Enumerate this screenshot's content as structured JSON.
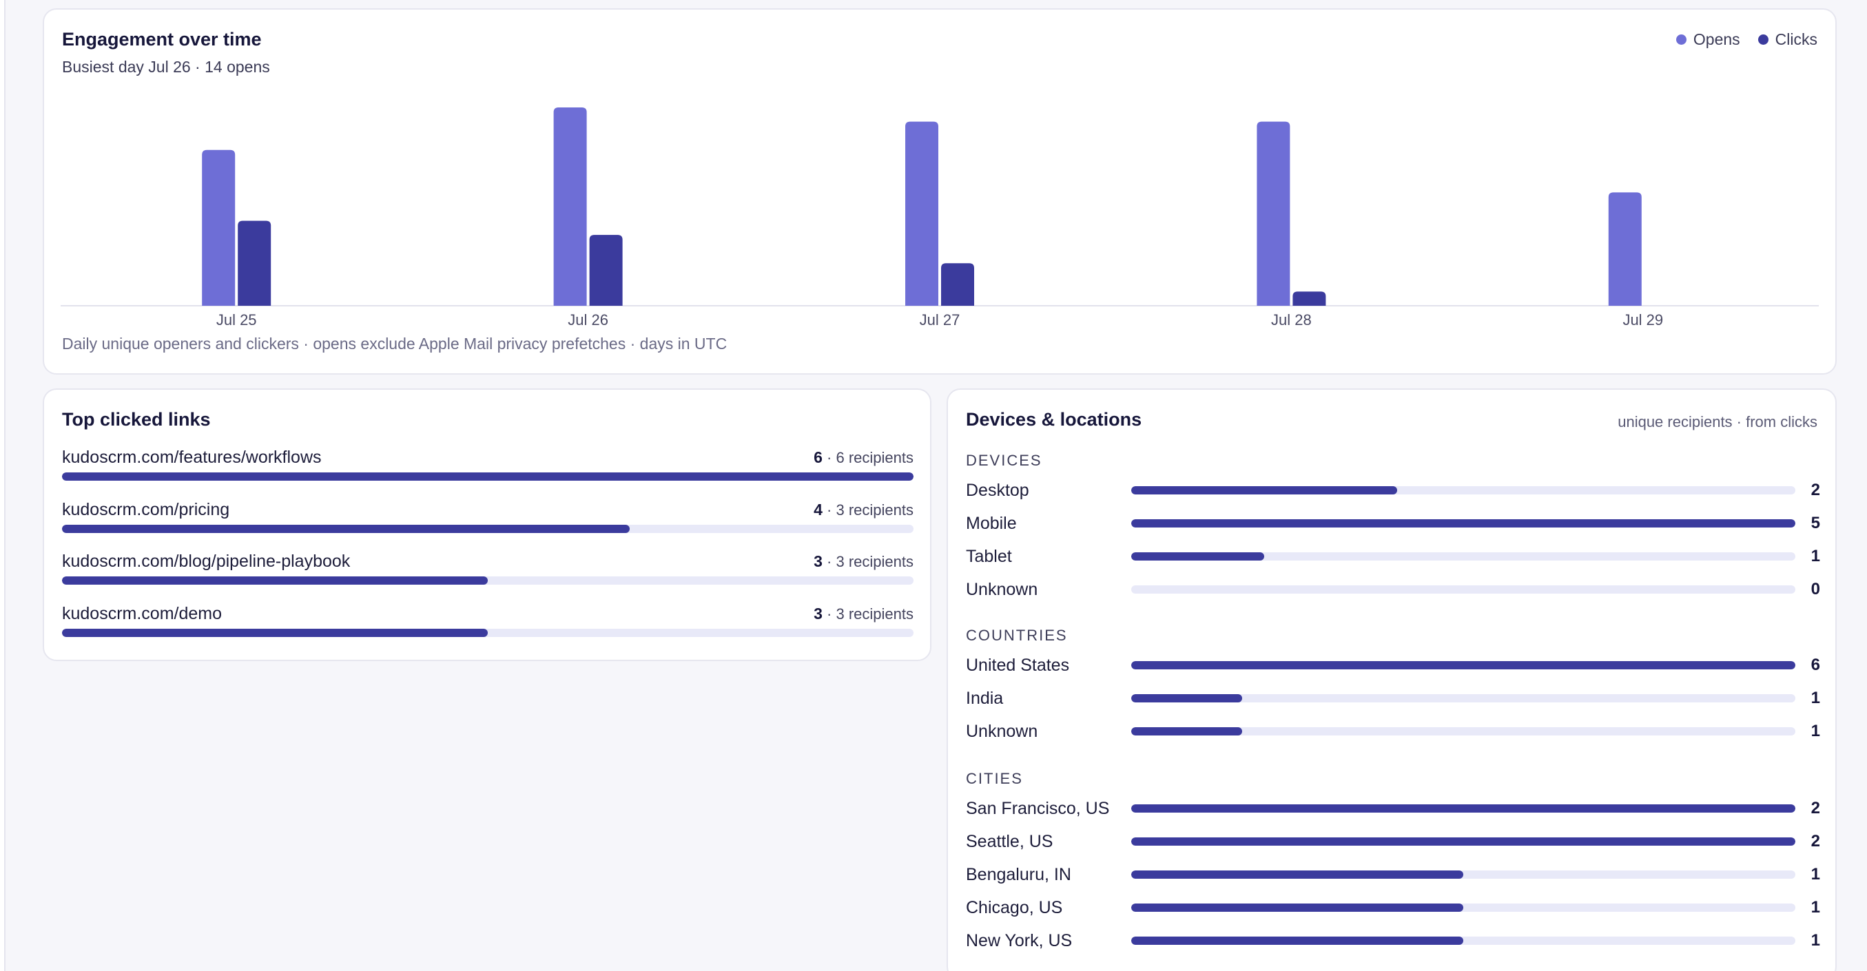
{
  "colors": {
    "opens": "#6e6ed6",
    "clicks": "#3b3b9d",
    "track": "#e8e9f8"
  },
  "engagement": {
    "title": "Engagement over time",
    "subtitle": "Busiest day Jul 26 · 14 opens",
    "legend": [
      {
        "label": "Opens",
        "color": "#6e6ed6"
      },
      {
        "label": "Clicks",
        "color": "#3b3b9d"
      }
    ],
    "footnote": "Daily unique openers and clickers · opens exclude Apple Mail privacy prefetches · days in UTC"
  },
  "chart_data": {
    "type": "bar",
    "categories": [
      "Jul 25",
      "Jul 26",
      "Jul 27",
      "Jul 28",
      "Jul 29"
    ],
    "series": [
      {
        "name": "Opens",
        "values": [
          11,
          14,
          13,
          13,
          8
        ]
      },
      {
        "name": "Clicks",
        "values": [
          6,
          5,
          3,
          1,
          0
        ]
      }
    ],
    "ylim": [
      0,
      14
    ],
    "grid": false,
    "legend": "top-right"
  },
  "links": {
    "title": "Top clicked links",
    "items": [
      {
        "url": "kudoscrm.com/features/workflows",
        "clicks": "6",
        "recipients": "· 6 recipients",
        "share": 1.0
      },
      {
        "url": "kudoscrm.com/pricing",
        "clicks": "4",
        "recipients": "· 3 recipients",
        "share": 0.667
      },
      {
        "url": "kudoscrm.com/blog/pipeline-playbook",
        "clicks": "3",
        "recipients": "· 3 recipients",
        "share": 0.5
      },
      {
        "url": "kudoscrm.com/demo",
        "clicks": "3",
        "recipients": "· 3 recipients",
        "share": 0.5
      }
    ]
  },
  "devices": {
    "title": "Devices & locations",
    "note": "unique recipients · from clicks",
    "sections": [
      {
        "label": "DEVICES",
        "items": [
          {
            "label": "Desktop",
            "value": "2",
            "share": 0.4
          },
          {
            "label": "Mobile",
            "value": "5",
            "share": 1.0
          },
          {
            "label": "Tablet",
            "value": "1",
            "share": 0.2
          },
          {
            "label": "Unknown",
            "value": "0",
            "share": 0
          }
        ]
      },
      {
        "label": "COUNTRIES",
        "items": [
          {
            "label": "United States",
            "value": "6",
            "share": 1.0
          },
          {
            "label": "India",
            "value": "1",
            "share": 0.167
          },
          {
            "label": "Unknown",
            "value": "1",
            "share": 0.167
          }
        ]
      },
      {
        "label": "CITIES",
        "items": [
          {
            "label": "San Francisco, US",
            "value": "2",
            "share": 1.0
          },
          {
            "label": "Seattle, US",
            "value": "2",
            "share": 1.0
          },
          {
            "label": "Bengaluru, IN",
            "value": "1",
            "share": 0.5
          },
          {
            "label": "Chicago, US",
            "value": "1",
            "share": 0.5
          },
          {
            "label": "New York, US",
            "value": "1",
            "share": 0.5
          }
        ]
      }
    ]
  }
}
